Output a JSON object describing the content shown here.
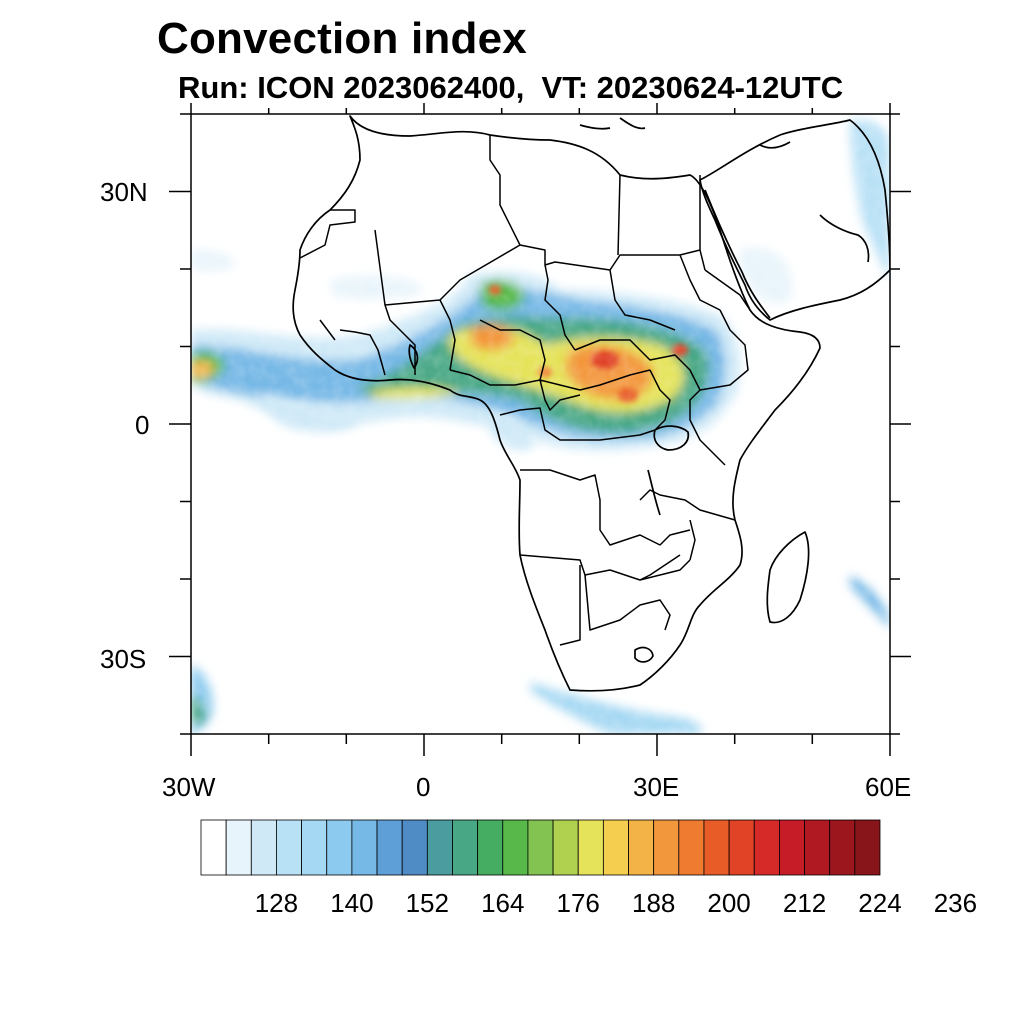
{
  "title": "Convection index",
  "subtitle": "Run: ICON 2023062400,  VT: 20230624-12UTC",
  "map": {
    "extent": {
      "lon": [
        -30,
        60
      ],
      "lat": [
        -40,
        40
      ]
    },
    "lat_labels": [
      {
        "lat": 30,
        "label": "30N"
      },
      {
        "lat": 0,
        "label": "0"
      },
      {
        "lat": -30,
        "label": "30S"
      }
    ],
    "lon_labels": [
      {
        "lon": -30,
        "label": "30W"
      },
      {
        "lon": 0,
        "label": "0"
      },
      {
        "lon": 30,
        "label": "30E"
      },
      {
        "lon": 60,
        "label": "60E"
      }
    ],
    "field": "Convection index",
    "features": "Convective band over the Sahel / Central Africa with maxima over the Central African Republic and South Sudan; weaker bands over the Gulf of Guinea, southern Atlantic and south of Madagascar"
  },
  "colorbar": {
    "colors": [
      "#ffffff",
      "#e8f4fb",
      "#cfe9f7",
      "#b9e1f6",
      "#a5d8f3",
      "#8ccbef",
      "#76b8e6",
      "#5f9fd8",
      "#4f8cc6",
      "#4a9c9e",
      "#48a886",
      "#44ad62",
      "#58b94a",
      "#83c352",
      "#b0d050",
      "#e5e35a",
      "#f6ce4f",
      "#f4b346",
      "#f3973c",
      "#ef7b30",
      "#e85c28",
      "#e04326",
      "#d62a28",
      "#c51c28",
      "#b01822",
      "#9c171d",
      "#88151a"
    ],
    "tick_labels": [
      "128",
      "140",
      "152",
      "164",
      "176",
      "188",
      "200",
      "212",
      "224",
      "236"
    ]
  },
  "colors": {
    "border": "#000000",
    "background": "#ffffff"
  }
}
